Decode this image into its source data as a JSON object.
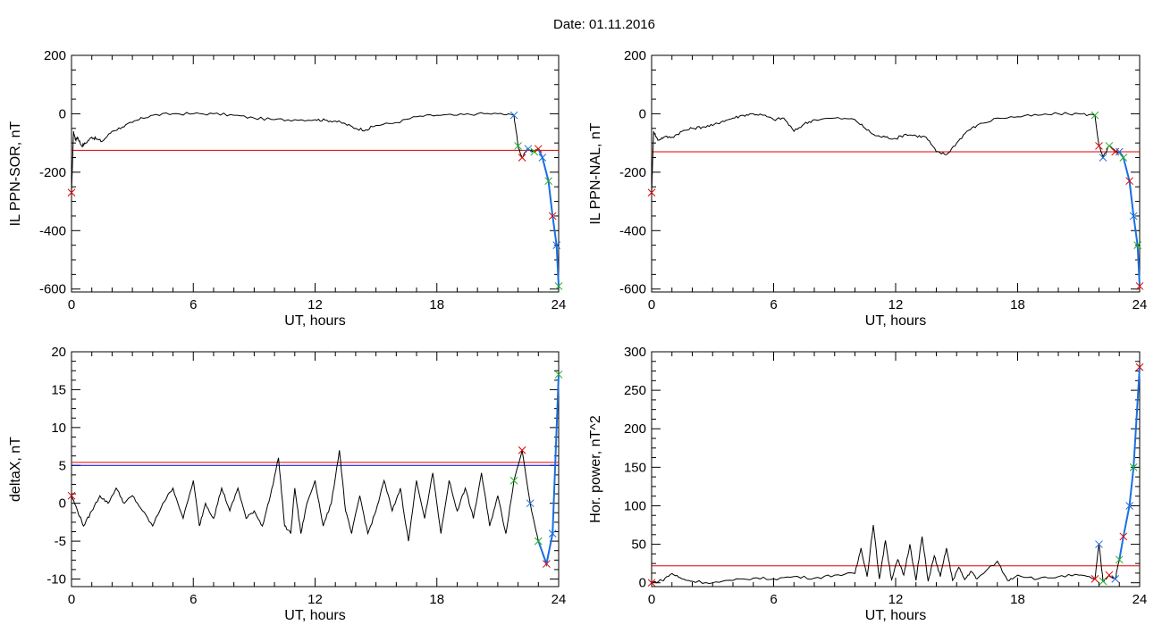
{
  "figure": {
    "title": "Date:  01.11.2016"
  },
  "colors": {
    "trace": "#000000",
    "threshold": "#e00000",
    "threshold2": "#0000c0",
    "highlight": "#1a6fe0",
    "mark_red": "#e00000",
    "mark_blue": "#1a6fe0",
    "mark_green": "#20b020"
  },
  "chart_data": [
    {
      "type": "line",
      "xlabel": "UT, hours",
      "ylabel": "IL PPN-SOR, nT",
      "xlim": [
        0,
        24
      ],
      "ylim": [
        -610,
        200
      ],
      "xticks": [
        0,
        6,
        12,
        18,
        24
      ],
      "yticks": [
        -600,
        -400,
        -200,
        0,
        200
      ],
      "grid": false,
      "series": [
        {
          "x": [
            0,
            0.1,
            0.2,
            0.3,
            0.5,
            0.7,
            1.0,
            1.2,
            1.5,
            2.0,
            2.5,
            3.0,
            3.5,
            4.0,
            5.0,
            6.0,
            7.0,
            8.0,
            9.0,
            10.0,
            11.0,
            12.0,
            12.5,
            13.0,
            13.5,
            14.0,
            14.5,
            15.0,
            16.0,
            17.0,
            18.0,
            19.0,
            20.0,
            21.0,
            21.8,
            22.0,
            22.2,
            22.5,
            22.8,
            23.0,
            23.2,
            23.5,
            23.7,
            23.9,
            24.0
          ],
          "y": [
            -270,
            -60,
            -90,
            -80,
            -110,
            -100,
            -80,
            -85,
            -95,
            -60,
            -45,
            -30,
            -15,
            -5,
            0,
            0,
            0,
            -5,
            -15,
            -20,
            -20,
            -20,
            -22,
            -25,
            -35,
            -50,
            -55,
            -40,
            -30,
            -10,
            -5,
            -5,
            0,
            0,
            -5,
            -110,
            -150,
            -120,
            -130,
            -120,
            -150,
            -230,
            -350,
            -450,
            -590
          ]
        }
      ],
      "threshold": -125
    },
    {
      "type": "line",
      "xlabel": "UT, hours",
      "ylabel": "IL PPN-NAL, nT",
      "xlim": [
        0,
        24
      ],
      "ylim": [
        -610,
        200
      ],
      "xticks": [
        0,
        6,
        12,
        18,
        24
      ],
      "yticks": [
        -600,
        -400,
        -200,
        0,
        200
      ],
      "grid": false,
      "series": [
        {
          "x": [
            0,
            0.1,
            0.3,
            0.6,
            1.0,
            1.5,
            2.0,
            2.5,
            3.0,
            3.5,
            4.0,
            4.5,
            5.0,
            5.5,
            6.0,
            6.5,
            7.0,
            7.5,
            8.0,
            9.0,
            10.0,
            10.5,
            11.0,
            11.5,
            12.0,
            12.5,
            13.0,
            13.5,
            14.0,
            14.5,
            15.0,
            15.5,
            16.0,
            17.0,
            18.0,
            19.0,
            20.0,
            21.0,
            21.8,
            22.0,
            22.2,
            22.5,
            22.8,
            23.0,
            23.2,
            23.5,
            23.7,
            23.9,
            24.0
          ],
          "y": [
            -270,
            -60,
            -90,
            -80,
            -80,
            -60,
            -50,
            -45,
            -40,
            -25,
            -15,
            -5,
            0,
            -5,
            -20,
            -15,
            -60,
            -35,
            -20,
            -15,
            -20,
            -50,
            -75,
            -80,
            -85,
            -70,
            -75,
            -80,
            -130,
            -140,
            -100,
            -60,
            -40,
            -15,
            -10,
            -5,
            0,
            0,
            -5,
            -110,
            -150,
            -110,
            -130,
            -130,
            -150,
            -230,
            -350,
            -450,
            -590
          ]
        }
      ],
      "threshold": -130
    },
    {
      "type": "line",
      "xlabel": "UT, hours",
      "ylabel": "deltaX, nT",
      "xlim": [
        0,
        24
      ],
      "ylim": [
        -11,
        20
      ],
      "xticks": [
        0,
        6,
        12,
        18,
        24
      ],
      "yticks": [
        -10,
        -5,
        0,
        5,
        10,
        15,
        20
      ],
      "grid": false,
      "series": [
        {
          "x": [
            0,
            0.3,
            0.6,
            1.0,
            1.4,
            1.8,
            2.2,
            2.6,
            3.0,
            3.5,
            4.0,
            4.5,
            5.0,
            5.5,
            6.0,
            6.3,
            6.6,
            7.0,
            7.4,
            7.8,
            8.2,
            8.6,
            9.0,
            9.4,
            9.8,
            10.2,
            10.5,
            10.8,
            11.0,
            11.3,
            11.6,
            12.0,
            12.4,
            12.8,
            13.2,
            13.5,
            13.8,
            14.2,
            14.6,
            15.0,
            15.4,
            15.8,
            16.2,
            16.6,
            17.0,
            17.4,
            17.8,
            18.2,
            18.6,
            19.0,
            19.4,
            19.8,
            20.2,
            20.6,
            21.0,
            21.4,
            21.8,
            22.2,
            22.6,
            23.0,
            23.4,
            23.7,
            24.0
          ],
          "y": [
            1,
            -1,
            -3,
            -1,
            1,
            0,
            2,
            0,
            1,
            -1,
            -3,
            0,
            2,
            -2,
            3,
            -3,
            0,
            -2,
            2,
            -1,
            2,
            -2,
            -1,
            -3,
            1,
            6,
            -3,
            -4,
            2,
            -4,
            0,
            3,
            -3,
            0,
            7,
            -1,
            -4,
            1,
            -4,
            -1,
            3,
            -1,
            2,
            -5,
            3,
            -2,
            4,
            -4,
            3,
            -1,
            2,
            -2,
            4,
            -3,
            1,
            -4,
            3,
            7,
            0,
            -5,
            -8,
            -4,
            17
          ]
        }
      ],
      "threshold": 5.4,
      "threshold2": 5.0
    },
    {
      "type": "line",
      "xlabel": "UT, hours",
      "ylabel": "Hor. power, nT^2",
      "xlim": [
        0,
        24
      ],
      "ylim": [
        -5,
        300
      ],
      "xticks": [
        0,
        6,
        12,
        18,
        24
      ],
      "yticks": [
        0,
        50,
        100,
        150,
        200,
        250,
        300
      ],
      "grid": false,
      "series": [
        {
          "x": [
            0,
            0.5,
            1.0,
            1.5,
            2.0,
            3.0,
            4.0,
            5.0,
            6.0,
            7.0,
            8.0,
            9.0,
            10.0,
            10.3,
            10.6,
            10.9,
            11.2,
            11.5,
            11.8,
            12.1,
            12.4,
            12.7,
            13.0,
            13.3,
            13.6,
            13.9,
            14.2,
            14.5,
            14.8,
            15.1,
            15.4,
            15.7,
            16.0,
            17.0,
            17.5,
            18.0,
            19.0,
            20.0,
            21.0,
            21.8,
            22.0,
            22.2,
            22.5,
            22.8,
            23.0,
            23.2,
            23.5,
            23.7,
            24.0
          ],
          "y": [
            0,
            3,
            12,
            5,
            2,
            0,
            3,
            6,
            5,
            8,
            6,
            10,
            12,
            45,
            8,
            75,
            5,
            55,
            4,
            30,
            10,
            50,
            3,
            60,
            2,
            35,
            8,
            45,
            3,
            20,
            4,
            15,
            5,
            28,
            3,
            10,
            5,
            8,
            10,
            5,
            50,
            2,
            10,
            5,
            30,
            60,
            100,
            150,
            280
          ]
        }
      ],
      "threshold": 22
    }
  ]
}
